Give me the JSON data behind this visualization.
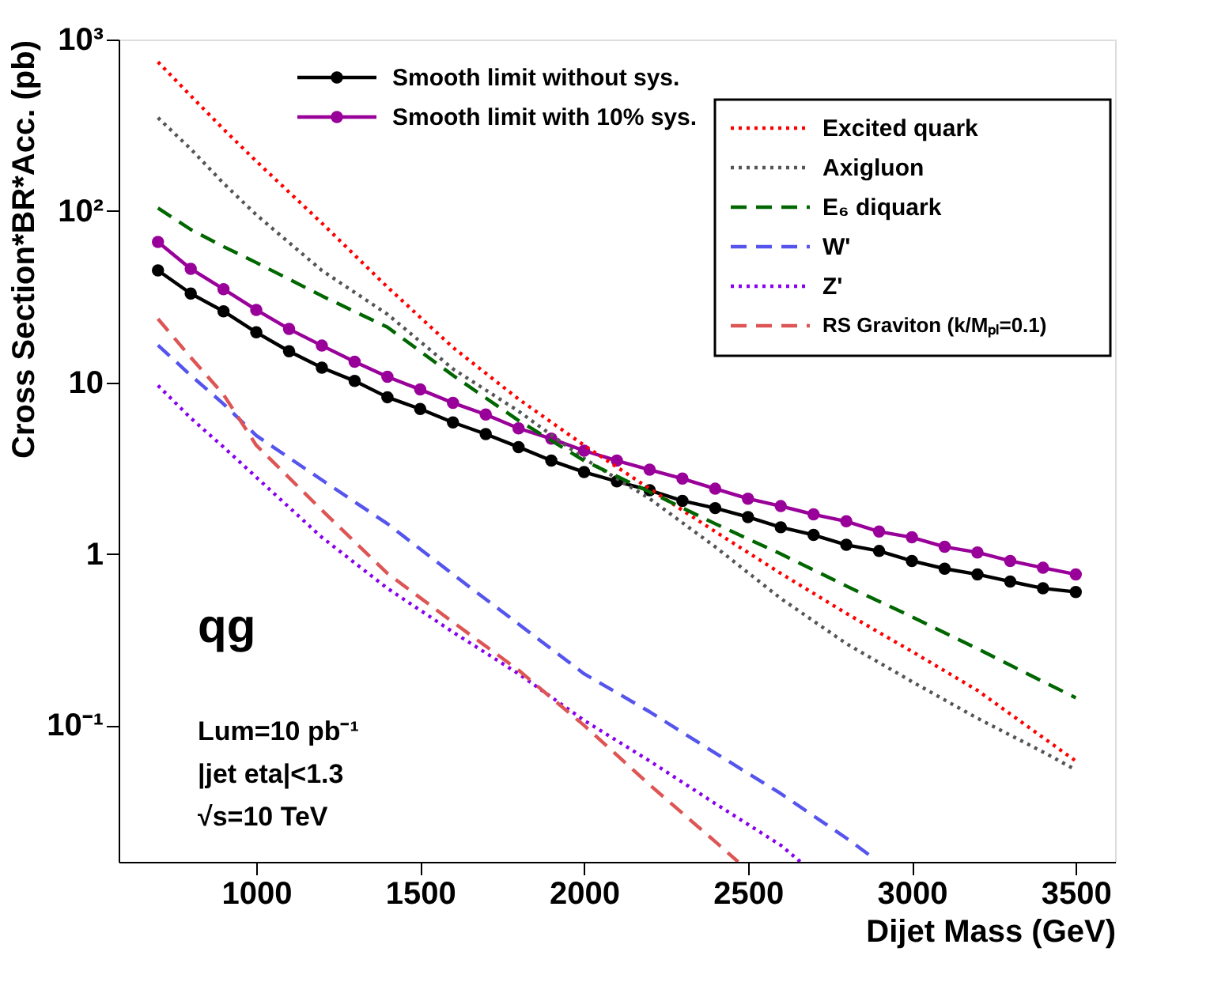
{
  "chart_data": {
    "type": "line",
    "xlabel": "Dijet Mass (GeV)",
    "ylabel": "Cross Section*BR*Acc. (pb)",
    "xlim": [
      580,
      3620
    ],
    "ylim": [
      0.016,
      1000
    ],
    "log": "y",
    "xticks": [
      1000,
      1500,
      2000,
      2500,
      3000,
      3500
    ],
    "yticks": [
      {
        "value": 0.1,
        "label": "10⁻¹"
      },
      1,
      10,
      {
        "value": 100,
        "label": "10²"
      },
      {
        "value": 1000,
        "label": "10³"
      }
    ],
    "grid": false,
    "legend": "top right",
    "annotations": [
      "qg",
      "Lum=10 pb⁻¹",
      "|jet eta|<1.3",
      "√s=10 TeV"
    ],
    "series": [
      {
        "name": "Smooth limit without sys.",
        "color": "#000000",
        "line_style": "solid",
        "marker": "circle",
        "x": [
          700,
          800,
          900,
          1000,
          1100,
          1200,
          1300,
          1400,
          1500,
          1600,
          1700,
          1800,
          1900,
          2000,
          2100,
          2200,
          2300,
          2400,
          2500,
          2600,
          2700,
          2800,
          2900,
          3000,
          3100,
          3200,
          3300,
          3400,
          3500
        ],
        "values": [
          45,
          33,
          26,
          19.6,
          15.2,
          12.2,
          10.2,
          8.2,
          7.0,
          5.85,
          5.0,
          4.2,
          3.5,
          3.0,
          2.65,
          2.35,
          2.04,
          1.85,
          1.64,
          1.43,
          1.29,
          1.13,
          1.04,
          0.91,
          0.82,
          0.76,
          0.69,
          0.63,
          0.6
        ]
      },
      {
        "name": "Smooth limit with 10% sys.",
        "color": "#990099",
        "line_style": "solid",
        "marker": "circle",
        "x": [
          700,
          800,
          900,
          1000,
          1100,
          1200,
          1300,
          1400,
          1500,
          1600,
          1700,
          1800,
          1900,
          2000,
          2100,
          2200,
          2300,
          2400,
          2500,
          2600,
          2700,
          2800,
          2900,
          3000,
          3100,
          3200,
          3300,
          3400,
          3500
        ],
        "values": [
          66,
          46,
          35,
          26.5,
          20.5,
          16.4,
          13.2,
          10.8,
          9.1,
          7.6,
          6.5,
          5.4,
          4.7,
          4.0,
          3.5,
          3.1,
          2.75,
          2.4,
          2.1,
          1.9,
          1.7,
          1.55,
          1.35,
          1.25,
          1.1,
          1.02,
          0.91,
          0.83,
          0.76
        ]
      },
      {
        "name": "Excited quark",
        "color": "#ff0000",
        "line_style": "dotted",
        "x": [
          700,
          800,
          900,
          1000,
          1200,
          1400,
          1600,
          1800,
          2000,
          2200,
          2400,
          2600,
          2800,
          3000,
          3200,
          3400,
          3500
        ],
        "values": [
          740,
          470,
          300,
          195,
          85,
          36,
          16,
          8,
          4.3,
          2.4,
          1.35,
          0.77,
          0.45,
          0.27,
          0.16,
          0.085,
          0.062
        ]
      },
      {
        "name": "Axigluon",
        "color": "#555555",
        "line_style": "dotted",
        "x": [
          700,
          800,
          900,
          1000,
          1200,
          1400,
          1600,
          1800,
          2000,
          2200,
          2400,
          2600,
          2800,
          3000,
          3200,
          3400,
          3500
        ],
        "values": [
          350,
          230,
          145,
          95,
          45,
          25,
          12,
          6.8,
          3.6,
          2.1,
          1.1,
          0.55,
          0.3,
          0.18,
          0.11,
          0.07,
          0.055
        ]
      },
      {
        "name": "E₆ diquark",
        "color": "#006600",
        "line_style": "dashed",
        "x": [
          700,
          800,
          900,
          1000,
          1200,
          1400,
          1600,
          1800,
          2000,
          2200,
          2400,
          2600,
          2800,
          3000,
          3200,
          3400,
          3500
        ],
        "values": [
          104,
          78,
          62,
          50,
          32,
          21,
          11,
          6,
          3.5,
          2.3,
          1.5,
          1.0,
          0.65,
          0.43,
          0.28,
          0.18,
          0.145
        ]
      },
      {
        "name": "W'",
        "color": "#5555ee",
        "line_style": "dashed",
        "x": [
          700,
          800,
          900,
          1000,
          1200,
          1400,
          1600,
          1800,
          2000,
          2200,
          2400,
          2600,
          2800,
          2880
        ],
        "values": [
          16.5,
          11,
          7.5,
          4.9,
          2.7,
          1.5,
          0.76,
          0.39,
          0.2,
          0.12,
          0.069,
          0.04,
          0.022,
          0.017
        ]
      },
      {
        "name": "Z'",
        "color": "#8800ee",
        "line_style": "dotted",
        "x": [
          700,
          800,
          900,
          1000,
          1200,
          1400,
          1600,
          1800,
          2000,
          2200,
          2400,
          2600,
          2660
        ],
        "values": [
          9.6,
          6.2,
          4.2,
          2.8,
          1.25,
          0.63,
          0.35,
          0.2,
          0.107,
          0.062,
          0.035,
          0.02,
          0.016
        ]
      },
      {
        "name": "RS Graviton (k/Mₚₗ=0.1)",
        "color": "#dd5555",
        "line_style": "dashed",
        "x": [
          700,
          800,
          900,
          1000,
          1200,
          1400,
          1600,
          1800,
          2000,
          2200,
          2400,
          2470
        ],
        "values": [
          23.5,
          14,
          8.5,
          4.3,
          1.8,
          0.77,
          0.4,
          0.21,
          0.1,
          0.045,
          0.021,
          0.016
        ]
      }
    ]
  }
}
